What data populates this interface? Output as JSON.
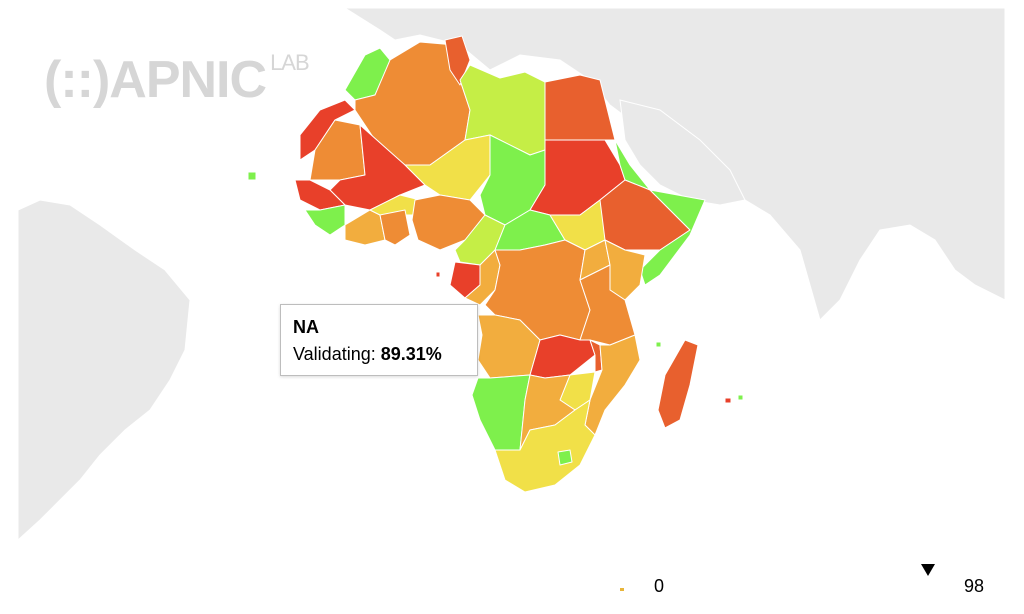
{
  "watermark": {
    "logo_text": "(::)APNIC",
    "sub_text": "LAB"
  },
  "tooltip": {
    "title": "NA",
    "metric_label": "Validating:",
    "metric_value": "89.31%"
  },
  "legend": {
    "min_label": "0",
    "max_label": "98",
    "marker_value": 89.31
  },
  "colors": {
    "ocean": "#ffffff",
    "land_other": "#e9e9e9",
    "border": "#ffffff",
    "red": "#e8402a",
    "red_orange": "#e8602e",
    "orange": "#ee8c35",
    "light_orange": "#f2ad3e",
    "yellow": "#f1e048",
    "yellow_green": "#c5ee46",
    "green": "#7ef04c"
  },
  "regions": [
    {
      "name": "Morocco",
      "color": "#7ef04c"
    },
    {
      "name": "Algeria",
      "color": "#ee8c35"
    },
    {
      "name": "Tunisia",
      "color": "#e8602e"
    },
    {
      "name": "Libya",
      "color": "#c5ee46"
    },
    {
      "name": "Egypt",
      "color": "#e8602e"
    },
    {
      "name": "Western Sahara",
      "color": "#e8402a"
    },
    {
      "name": "Mauritania",
      "color": "#ee8c35"
    },
    {
      "name": "Mali",
      "color": "#e8402a"
    },
    {
      "name": "Niger",
      "color": "#f1e048"
    },
    {
      "name": "Chad",
      "color": "#7ef04c"
    },
    {
      "name": "Sudan",
      "color": "#e8402a"
    },
    {
      "name": "Eritrea",
      "color": "#7ef04c"
    },
    {
      "name": "Ethiopia",
      "color": "#e8602e"
    },
    {
      "name": "Somalia",
      "color": "#7ef04c"
    },
    {
      "name": "Senegal",
      "color": "#e8402a"
    },
    {
      "name": "Guinea",
      "color": "#7ef04c"
    },
    {
      "name": "Cote d'Ivoire",
      "color": "#f2ad3e"
    },
    {
      "name": "Burkina Faso",
      "color": "#f1e048"
    },
    {
      "name": "Ghana",
      "color": "#ee8c35"
    },
    {
      "name": "Nigeria",
      "color": "#ee8c35"
    },
    {
      "name": "Cameroon",
      "color": "#c5ee46"
    },
    {
      "name": "Central African Republic",
      "color": "#7ef04c"
    },
    {
      "name": "South Sudan",
      "color": "#f1e048"
    },
    {
      "name": "Gabon",
      "color": "#e8402a"
    },
    {
      "name": "Congo",
      "color": "#f2ad3e"
    },
    {
      "name": "DR Congo",
      "color": "#ee8c35"
    },
    {
      "name": "Uganda",
      "color": "#f2ad3e"
    },
    {
      "name": "Kenya",
      "color": "#f2ad3e"
    },
    {
      "name": "Tanzania",
      "color": "#ee8c35"
    },
    {
      "name": "Angola",
      "color": "#f2ad3e"
    },
    {
      "name": "Zambia",
      "color": "#e8402a"
    },
    {
      "name": "Malawi",
      "color": "#e8602e"
    },
    {
      "name": "Mozambique",
      "color": "#f2ad3e"
    },
    {
      "name": "Zimbabwe",
      "color": "#f1e048"
    },
    {
      "name": "Namibia",
      "color": "#7ef04c"
    },
    {
      "name": "Botswana",
      "color": "#f2ad3e"
    },
    {
      "name": "South Africa",
      "color": "#f1e048"
    },
    {
      "name": "Lesotho",
      "color": "#7ef04c"
    },
    {
      "name": "Madagascar",
      "color": "#e8602e"
    }
  ]
}
